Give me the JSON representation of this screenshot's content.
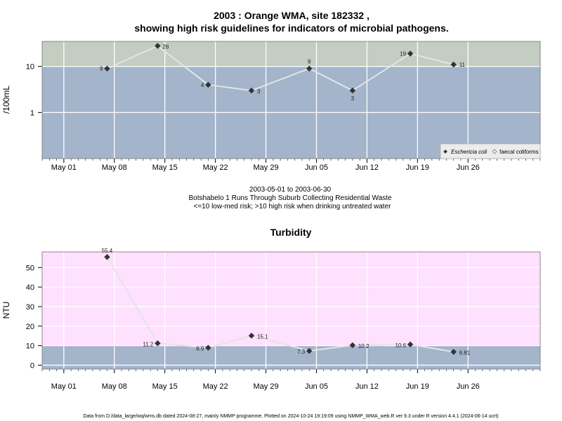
{
  "chart_data": [
    {
      "type": "line",
      "title": "2003 : Orange WMA, site 182332 ,",
      "subtitle": "showing high risk guidelines for indicators of microbial pathogens.",
      "ylabel": "/100mL",
      "yscale": "log",
      "ylim": [
        0.1,
        35
      ],
      "yticks": [
        1,
        10
      ],
      "ytick_labels": [
        "1",
        "10"
      ],
      "xlim": [
        "2003-04-28",
        "2003-07-06"
      ],
      "xticks": [
        "2003-05-01",
        "2003-05-08",
        "2003-05-15",
        "2003-05-22",
        "2003-05-29",
        "2003-06-05",
        "2003-06-12",
        "2003-06-19",
        "2003-06-26"
      ],
      "xtick_labels": [
        "May 01",
        "May 08",
        "May 15",
        "May 22",
        "May 29",
        "Jun 05",
        "Jun 12",
        "Jun 19",
        "Jun 26"
      ],
      "threshold": 10,
      "band_colors": {
        "above": "#c3cdc1",
        "below": "#a3b4cb"
      },
      "series": [
        {
          "name": "Eschericia coli",
          "color": "#333333",
          "line_color": "#e4e4e4",
          "points": [
            {
              "x": "2003-05-07",
              "y": 9,
              "label": "9"
            },
            {
              "x": "2003-05-14",
              "y": 28,
              "label": "28"
            },
            {
              "x": "2003-05-21",
              "y": 4,
              "label": "4"
            },
            {
              "x": "2003-05-27",
              "y": 3,
              "label": "3"
            },
            {
              "x": "2003-06-04",
              "y": 9,
              "label": "9"
            },
            {
              "x": "2003-06-10",
              "y": 3,
              "label": "3"
            },
            {
              "x": "2003-06-18",
              "y": 19,
              "label": "19"
            },
            {
              "x": "2003-06-24",
              "y": 11,
              "label": "11"
            }
          ]
        }
      ],
      "legend": {
        "placement": "bottom-right",
        "entries": [
          "Eschericia coli",
          "faecal coliforms"
        ]
      },
      "caption_lines": [
        "2003-05-01 to 2003-06-30",
        "Botshabelo 1 Runs Through Suburb Collecting Residential Waste",
        "<=10 low-med risk; >10 high risk when drinking untreated water"
      ]
    },
    {
      "type": "line",
      "title": "Turbidity",
      "ylabel": "NTU",
      "ylim": [
        -2,
        58
      ],
      "yticks": [
        0,
        10,
        20,
        30,
        40,
        50
      ],
      "ytick_labels": [
        "0",
        "10",
        "20",
        "30",
        "40",
        "50"
      ],
      "xlim": [
        "2003-04-28",
        "2003-07-06"
      ],
      "xticks": [
        "2003-05-01",
        "2003-05-08",
        "2003-05-15",
        "2003-05-22",
        "2003-05-29",
        "2003-06-05",
        "2003-06-12",
        "2003-06-19",
        "2003-06-26"
      ],
      "xtick_labels": [
        "May 01",
        "May 08",
        "May 15",
        "May 22",
        "May 29",
        "Jun 05",
        "Jun 12",
        "Jun 19",
        "Jun 26"
      ],
      "threshold": 10,
      "band_colors": {
        "above": "#ffe0ff",
        "below": "#a3b4cb"
      },
      "series": [
        {
          "name": "",
          "color": "#333333",
          "line_color": "#e4e4e4",
          "points": [
            {
              "x": "2003-05-07",
              "y": 55.4,
              "label": "55.4"
            },
            {
              "x": "2003-05-14",
              "y": 11.2,
              "label": "11.2"
            },
            {
              "x": "2003-05-21",
              "y": 8.9,
              "label": "8.9"
            },
            {
              "x": "2003-05-27",
              "y": 15.1,
              "label": "15.1"
            },
            {
              "x": "2003-06-04",
              "y": 7.3,
              "label": "7.3"
            },
            {
              "x": "2003-06-10",
              "y": 10.2,
              "label": "10.2"
            },
            {
              "x": "2003-06-18",
              "y": 10.6,
              "label": "10.6"
            },
            {
              "x": "2003-06-24",
              "y": 6.81,
              "label": "6.81"
            }
          ]
        }
      ]
    }
  ],
  "footer": "Data from D:/data_large/wq/wms.db dated 2024-08-27, mainly NMMP programme. Plotted on 2024-10-24 19:19:09 using NMMP_WMA_web.R ver 9.3 under R version 4.4.1 (2024-06-14 ucrt)"
}
